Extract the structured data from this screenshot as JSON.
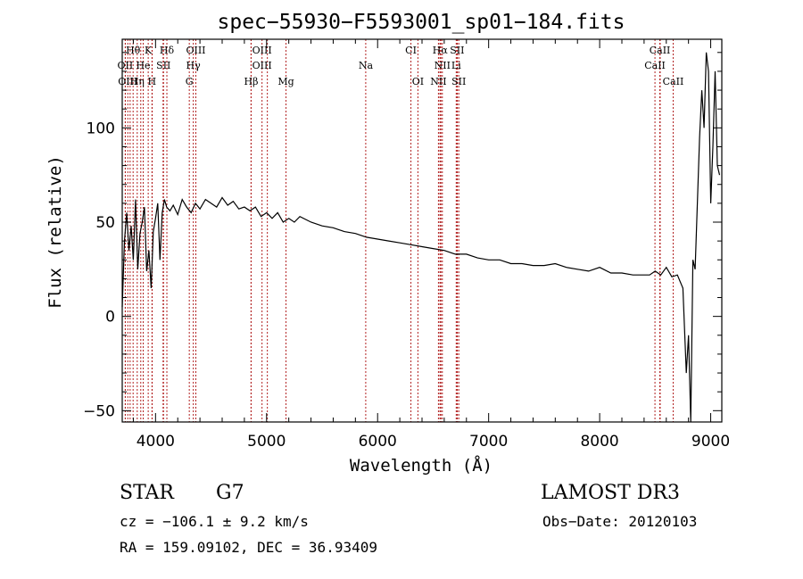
{
  "chart_data": {
    "type": "line",
    "title": "spec−55930−F5593001_sp01−184.fits",
    "xlabel": "Wavelength (Å)",
    "ylabel": "Flux (relative)",
    "xlim": [
      3700,
      9100
    ],
    "ylim": [
      -56,
      147
    ],
    "xticks": [
      4000,
      5000,
      6000,
      7000,
      8000,
      9000
    ],
    "xtick_labels": [
      "4000",
      "5000",
      "6000",
      "7000",
      "8000",
      "9000"
    ],
    "yticks": [
      -50,
      0,
      50,
      100
    ],
    "ytick_labels": [
      "−50",
      "0",
      "50",
      "100"
    ],
    "grid": false,
    "series": [
      {
        "name": "flux",
        "x": [
          3700,
          3720,
          3740,
          3760,
          3780,
          3800,
          3820,
          3840,
          3860,
          3880,
          3900,
          3920,
          3940,
          3960,
          3980,
          4000,
          4020,
          4040,
          4060,
          4080,
          4100,
          4130,
          4160,
          4200,
          4240,
          4280,
          4320,
          4360,
          4400,
          4450,
          4500,
          4550,
          4600,
          4650,
          4700,
          4750,
          4800,
          4850,
          4900,
          4950,
          5000,
          5050,
          5100,
          5150,
          5200,
          5250,
          5300,
          5400,
          5500,
          5600,
          5700,
          5800,
          5900,
          6000,
          6100,
          6200,
          6300,
          6400,
          6500,
          6600,
          6700,
          6800,
          6900,
          7000,
          7100,
          7200,
          7300,
          7400,
          7500,
          7600,
          7700,
          7800,
          7900,
          8000,
          8100,
          8200,
          8300,
          8400,
          8450,
          8500,
          8550,
          8600,
          8650,
          8700,
          8750,
          8780,
          8800,
          8820,
          8840,
          8860,
          8880,
          8900,
          8920,
          8940,
          8960,
          8980,
          9000,
          9020,
          9040,
          9060,
          9080
        ],
        "values": [
          5,
          40,
          55,
          35,
          48,
          30,
          62,
          25,
          44,
          50,
          58,
          24,
          35,
          15,
          45,
          52,
          60,
          30,
          55,
          62,
          58,
          56,
          59,
          54,
          62,
          58,
          55,
          60,
          57,
          62,
          60,
          58,
          63,
          59,
          61,
          57,
          58,
          56,
          58,
          53,
          55,
          52,
          55,
          50,
          52,
          50,
          53,
          50,
          48,
          47,
          45,
          44,
          42,
          41,
          40,
          39,
          38,
          37,
          36,
          35,
          33,
          33,
          31,
          30,
          30,
          28,
          28,
          27,
          27,
          28,
          26,
          25,
          24,
          26,
          23,
          23,
          22,
          22,
          22,
          24,
          22,
          26,
          21,
          22,
          15,
          -30,
          -10,
          -56,
          30,
          25,
          60,
          95,
          120,
          100,
          140,
          130,
          60,
          90,
          130,
          80,
          75
        ]
      }
    ],
    "lines_row1": [
      {
        "label": "Hθ",
        "x": 3798
      },
      {
        "label": "K",
        "x": 3934
      },
      {
        "label": "Hδ",
        "x": 4102
      },
      {
        "label": "OIII",
        "x": 4363
      },
      {
        "label": "OIII",
        "x": 4959
      },
      {
        "label": "CI",
        "x": 6300
      },
      {
        "label": "Hα",
        "x": 6563
      },
      {
        "label": "SII",
        "x": 6716
      },
      {
        "label": "CaII",
        "x": 8542
      }
    ],
    "lines_row2": [
      {
        "label": "OII",
        "x": 3727
      },
      {
        "label": "He",
        "x": 3889
      },
      {
        "label": "SII",
        "x": 4072
      },
      {
        "label": "Hγ",
        "x": 4340
      },
      {
        "label": "OIII",
        "x": 4959
      },
      {
        "label": "Na",
        "x": 5893
      },
      {
        "label": "NII",
        "x": 6583
      },
      {
        "label": "Li",
        "x": 6708
      },
      {
        "label": "CaII",
        "x": 8498
      }
    ],
    "lines_row3": [
      {
        "label": "OIII",
        "x": 3750
      },
      {
        "label": "Hη",
        "x": 3835
      },
      {
        "label": "H",
        "x": 3968
      },
      {
        "label": "G",
        "x": 4304
      },
      {
        "label": "Hβ",
        "x": 4861
      },
      {
        "label": "Mg",
        "x": 5175
      },
      {
        "label": "OI",
        "x": 6363
      },
      {
        "label": "NII",
        "x": 6548
      },
      {
        "label": "SII",
        "x": 6731
      },
      {
        "label": "CaII",
        "x": 8662
      }
    ],
    "extra_lines": [
      3728,
      3771,
      3867,
      3889,
      3970,
      4068,
      4860,
      5007,
      6562,
      6570,
      6718,
      8545
    ]
  },
  "info": {
    "class": "STAR",
    "subclass": "G7",
    "survey": "LAMOST DR3",
    "redshift": "cz = −106.1 ± 9.2 km/s",
    "obs_date": "Obs−Date: 20120103",
    "coords": "RA = 159.09102, DEC =  36.93409"
  },
  "colors": {
    "line_markers": "#b22222",
    "spectrum": "#000000",
    "axes": "#000000"
  }
}
